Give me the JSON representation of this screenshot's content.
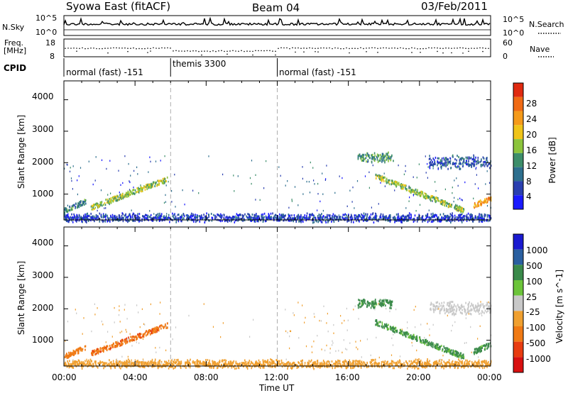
{
  "header": {
    "station": "Syowa East (fitACF)",
    "beam": "Beam 04",
    "date": "03/Feb/2011"
  },
  "noise_panel": {
    "left_label": "N.Sky",
    "left_ticks": [
      "10^5",
      "10^0"
    ],
    "right_label": "N.Search",
    "right_ticks": [
      "10^5",
      "10^0"
    ]
  },
  "freq_panel": {
    "left_label_line1": "Freq.",
    "left_label_line2": "[MHz]",
    "left_ticks": [
      "18",
      "8"
    ],
    "right_label": "Nave",
    "right_ticks": [
      "60",
      "0"
    ]
  },
  "cpid_panel": {
    "label": "CPID",
    "segments": [
      "normal (fast) -151",
      "themis 3300",
      "normal (fast) -151"
    ]
  },
  "axes": {
    "ylabel": "Slant Range [km]",
    "yticks": [
      "1000",
      "2000",
      "3000",
      "4000"
    ],
    "xticks": [
      "00:00",
      "04:00",
      "08:00",
      "12:00",
      "16:00",
      "20:00",
      "00:00"
    ],
    "xlabel": "Time UT"
  },
  "power_colorbar": {
    "label": "Power [dB]",
    "ticks": [
      "4",
      "8",
      "12",
      "16",
      "20",
      "24",
      "28"
    ],
    "colors": [
      "#1a1aff",
      "#2a3fb0",
      "#2e6f8e",
      "#3d8e6a",
      "#8cc43c",
      "#f0c419",
      "#f59a1a",
      "#f06a14",
      "#e02a10"
    ]
  },
  "velocity_colorbar": {
    "label": "Velocity [m s^-1]",
    "ticks": [
      "1000",
      "500",
      "100",
      "25",
      "-25",
      "-100",
      "-500",
      "-1000"
    ],
    "colors": [
      "#1a1ad0",
      "#2a5fa0",
      "#3a8a4a",
      "#6cc43a",
      "#c8c8c8",
      "#f0a030",
      "#f07a14",
      "#e83c10",
      "#d81010"
    ]
  },
  "chart_data": {
    "type": "heatmap",
    "title": "Syowa East (fitACF)  Beam 04  03/Feb/2011",
    "xlabel": "Time UT",
    "ylabel": "Slant Range [km]",
    "xlim_hours": [
      0,
      24
    ],
    "ylim_km": [
      180,
      4600
    ],
    "panels": [
      "Power [dB]",
      "Velocity [m s^-1]"
    ],
    "mode_changes_hours": [
      6,
      12
    ],
    "echo_regions": [
      {
        "name": "morning arc",
        "t_start": 1.5,
        "t_end": 5.8,
        "range_start": 600,
        "range_end": 1500,
        "power": 18,
        "velocity": -400
      },
      {
        "name": "early ground scatter",
        "t_start": 0,
        "t_end": 1.2,
        "range_start": 500,
        "range_end": 800,
        "power": 12,
        "velocity": -300
      },
      {
        "name": "near range band",
        "t_start": 0,
        "t_end": 24,
        "range_start": 200,
        "range_end": 350,
        "power": 6,
        "velocity": -50
      },
      {
        "name": "afternoon 2200km",
        "t_start": 16.5,
        "t_end": 18.5,
        "range_start": 2100,
        "range_end": 2300,
        "power": 14,
        "velocity": 200
      },
      {
        "name": "afternoon arc",
        "t_start": 17.5,
        "t_end": 22.5,
        "range_start": 500,
        "range_end": 1600,
        "power": 18,
        "velocity": 150
      },
      {
        "name": "evening 2100km",
        "t_start": 20.5,
        "t_end": 24,
        "range_start": 1900,
        "range_end": 2200,
        "power": 8,
        "velocity": 0
      },
      {
        "name": "late high power",
        "t_start": 23,
        "t_end": 24,
        "range_start": 650,
        "range_end": 900,
        "power": 26,
        "velocity": 200
      }
    ]
  }
}
